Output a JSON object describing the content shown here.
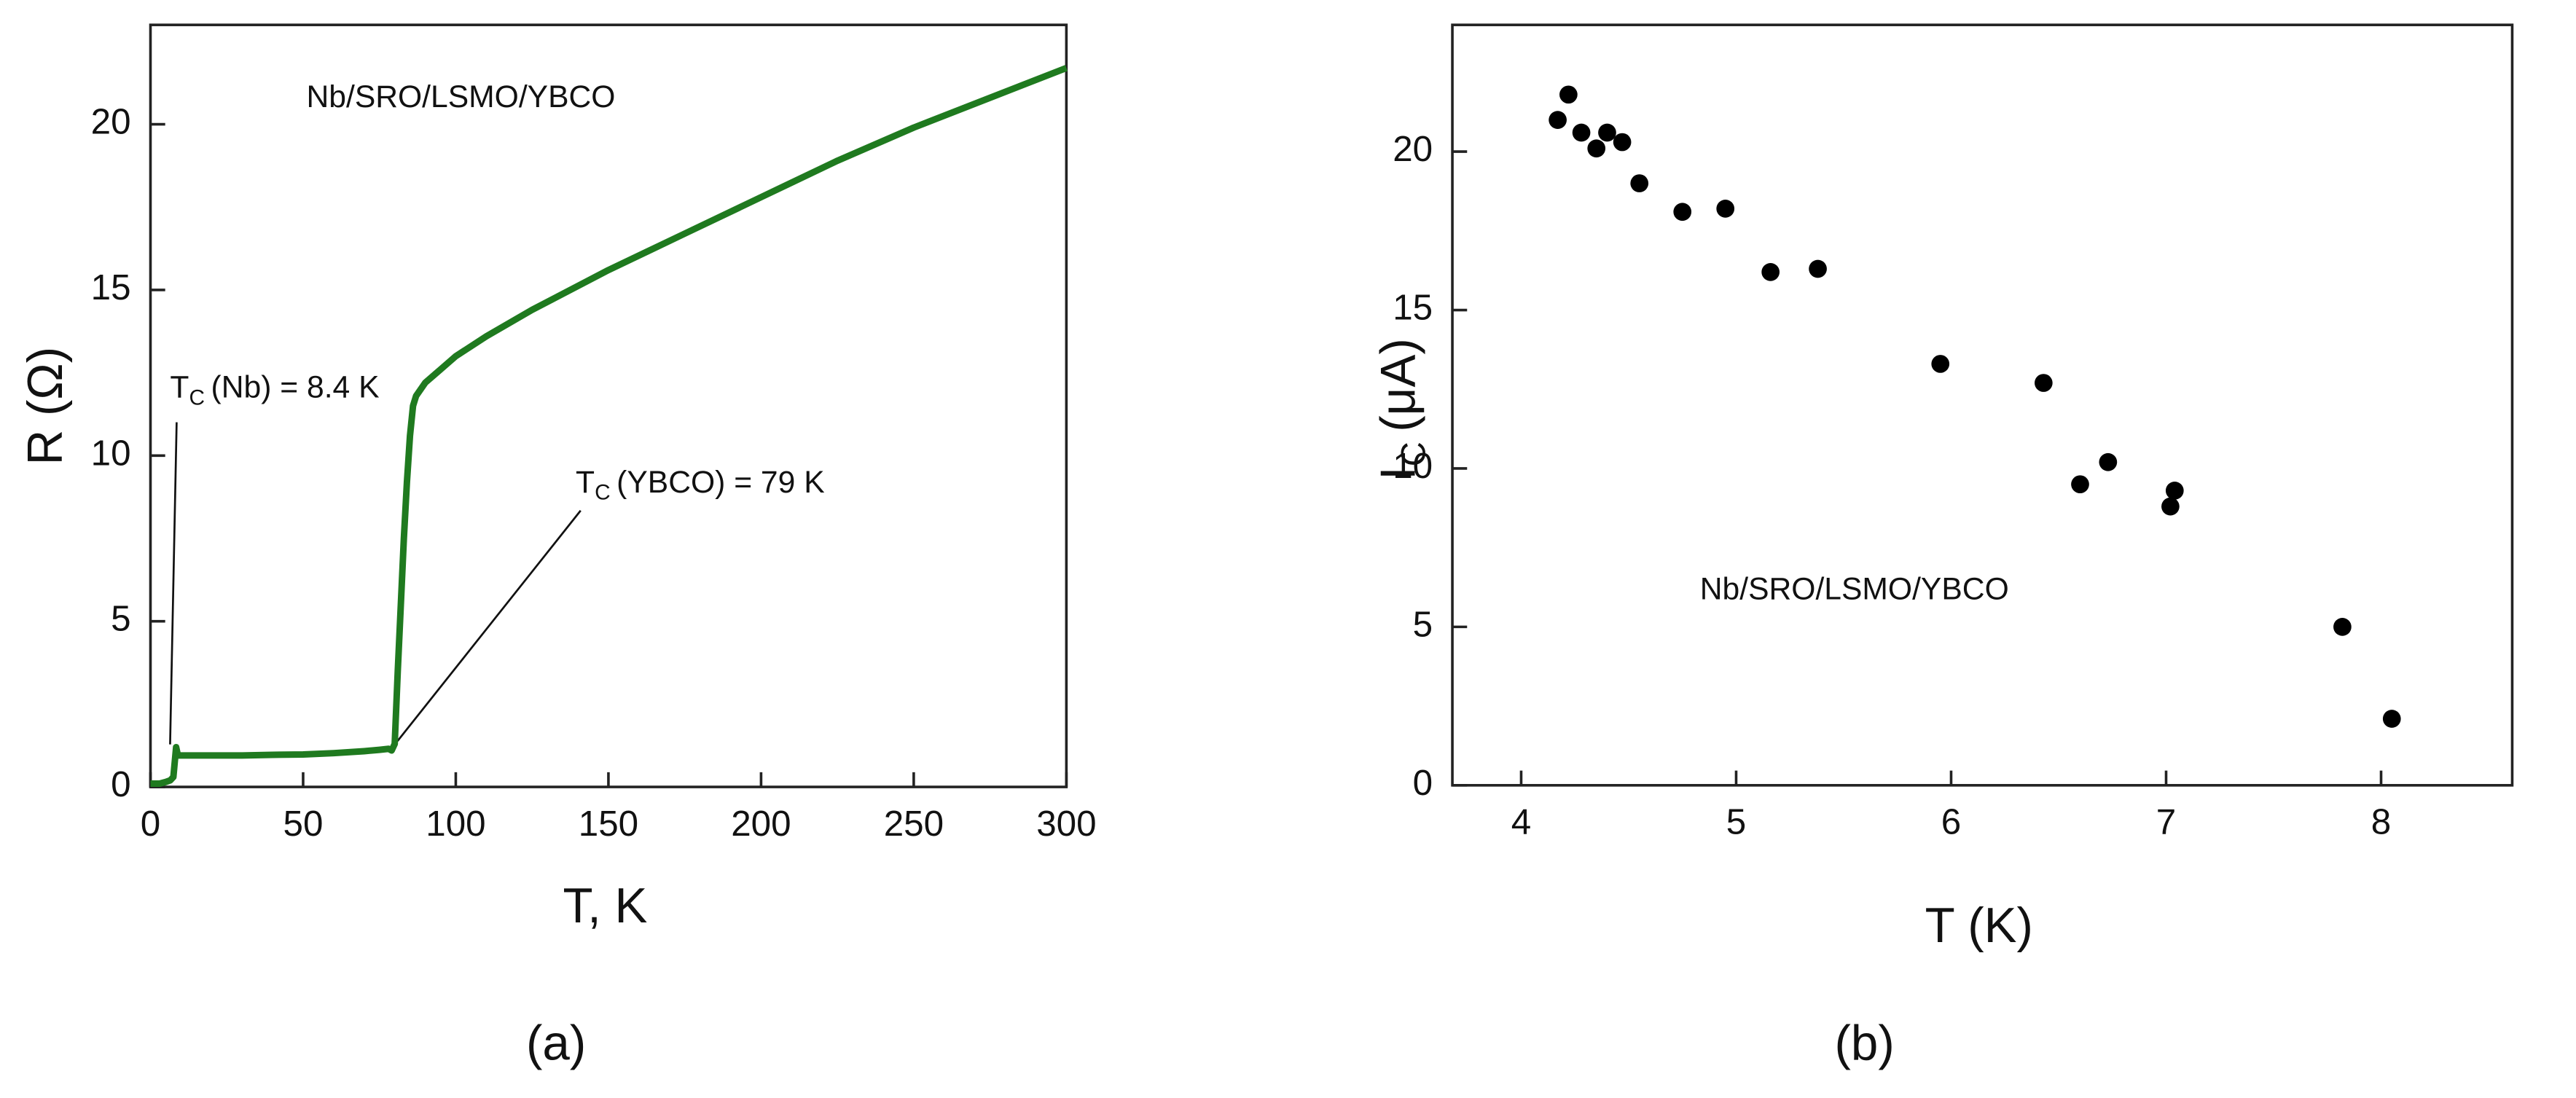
{
  "chart_data": [
    {
      "type": "line",
      "panel_label": "(a)",
      "x_label": "T, K",
      "y_label": "R (Ω)",
      "xlim": [
        0,
        300
      ],
      "ylim": [
        0,
        23
      ],
      "xticks": [
        0,
        50,
        100,
        150,
        200,
        250,
        300
      ],
      "yticks": [
        0,
        5,
        10,
        15,
        20
      ],
      "series": [
        {
          "color": "#1f7a1f",
          "x": [
            0,
            3,
            5,
            6.5,
            7.5,
            8.4,
            9,
            12,
            20,
            30,
            40,
            50,
            60,
            70,
            75,
            78,
            79,
            80,
            81,
            82,
            83,
            84,
            85,
            86,
            87,
            90,
            95,
            100,
            110,
            125,
            150,
            175,
            200,
            225,
            250,
            275,
            300
          ],
          "values": [
            0.1,
            0.1,
            0.15,
            0.2,
            0.3,
            1.2,
            0.95,
            0.95,
            0.95,
            0.95,
            0.97,
            0.98,
            1.02,
            1.08,
            1.12,
            1.15,
            1.1,
            1.3,
            3.5,
            5.5,
            7.5,
            9.2,
            10.6,
            11.5,
            11.8,
            12.2,
            12.6,
            13.0,
            13.6,
            14.4,
            15.6,
            16.7,
            17.8,
            18.9,
            19.9,
            20.8,
            21.7
          ]
        }
      ],
      "annotations": [
        {
          "text": "Nb/SRO/LSMO/YBCO"
        },
        {
          "symbol": "T",
          "subscript": "C",
          "text": "(Nb) = 8.4 K",
          "color": "#1c1c8f"
        },
        {
          "symbol": "T",
          "subscript": "C",
          "text": "(YBCO) = 79 K"
        }
      ]
    },
    {
      "type": "scatter",
      "panel_label": "(b)",
      "x_label": "T (K)",
      "y_label": {
        "symbol": "I",
        "subscript": "C",
        "text": "(μA)"
      },
      "xlim": [
        3.68,
        8.61
      ],
      "ylim": [
        0,
        24
      ],
      "xticks": [
        4,
        5,
        6,
        7,
        8
      ],
      "yticks": [
        0,
        5,
        10,
        15,
        20
      ],
      "series": [
        {
          "color": "#000000",
          "x": [
            4.17,
            4.22,
            4.28,
            4.35,
            4.4,
            4.47,
            4.55,
            4.75,
            4.95,
            5.16,
            5.38,
            5.95,
            6.43,
            6.6,
            6.73,
            7.02,
            7.04,
            7.82,
            8.05
          ],
          "values": [
            21.0,
            21.8,
            20.6,
            20.1,
            20.6,
            20.3,
            19.0,
            18.1,
            18.2,
            16.2,
            16.3,
            13.3,
            12.7,
            9.5,
            10.2,
            8.8,
            9.3,
            5.0,
            2.1
          ]
        }
      ],
      "annotations": [
        {
          "text": "Nb/SRO/LSMO/YBCO"
        }
      ]
    }
  ]
}
